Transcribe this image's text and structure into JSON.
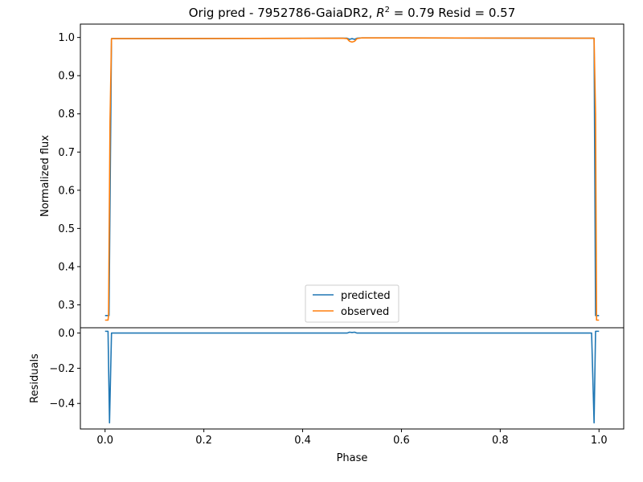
{
  "chart_data": [
    {
      "type": "line",
      "title": {
        "prefix": "Orig pred - 7952786-GaiaDR2, ",
        "r2_symbol": "R",
        "r2_exponent": "2",
        "r2_value": " = 0.79 Resid = 0.57"
      },
      "ylabel": "Normalized flux",
      "xlim": [
        -0.05,
        1.05
      ],
      "ylim": [
        0.24,
        1.035
      ],
      "yticks": [
        0.3,
        0.4,
        0.5,
        0.6,
        0.7,
        0.8,
        0.9,
        1.0
      ],
      "ytick_labels": [
        "0.3",
        "0.4",
        "0.5",
        "0.6",
        "0.7",
        "0.8",
        "0.9",
        "1.0"
      ],
      "legend": {
        "placement": "lower center"
      },
      "series": [
        {
          "name": "predicted",
          "color": "#1f77b4",
          "x": [
            0.0,
            0.007,
            0.008,
            0.013,
            0.05,
            0.48,
            0.49,
            0.495,
            0.5,
            0.505,
            0.51,
            0.52,
            0.95,
            0.985,
            0.99,
            0.993,
            1.0
          ],
          "y": [
            0.272,
            0.272,
            0.272,
            0.997,
            0.997,
            0.998,
            0.998,
            0.995,
            0.997,
            0.995,
            0.998,
            0.999,
            0.998,
            0.998,
            0.998,
            0.272,
            0.272
          ]
        },
        {
          "name": "observed",
          "color": "#ff7f0e",
          "x": [
            0.0,
            0.006,
            0.007,
            0.01,
            0.013,
            0.05,
            0.48,
            0.49,
            0.495,
            0.5,
            0.505,
            0.51,
            0.52,
            0.95,
            0.985,
            0.99,
            0.993,
            0.995,
            1.0
          ],
          "y": [
            0.26,
            0.26,
            0.272,
            0.78,
            0.997,
            0.997,
            0.998,
            0.997,
            0.99,
            0.988,
            0.99,
            0.997,
            0.999,
            0.998,
            0.998,
            0.998,
            0.8,
            0.26,
            0.26
          ]
        }
      ]
    },
    {
      "type": "line",
      "xlabel": "Phase",
      "ylabel": "Residuals",
      "xlim": [
        -0.05,
        1.05
      ],
      "ylim": [
        -0.545,
        0.03
      ],
      "xticks": [
        0.0,
        0.2,
        0.4,
        0.6,
        0.8,
        1.0
      ],
      "xtick_labels": [
        "0.0",
        "0.2",
        "0.4",
        "0.6",
        "0.8",
        "1.0"
      ],
      "yticks": [
        0.0,
        -0.2,
        -0.4
      ],
      "ytick_labels": [
        "0.0",
        "−0.2",
        "−0.4"
      ],
      "series": [
        {
          "color": "#1f77b4",
          "x": [
            0.0,
            0.006,
            0.009,
            0.013,
            0.05,
            0.48,
            0.49,
            0.495,
            0.5,
            0.505,
            0.51,
            0.52,
            0.95,
            0.985,
            0.99,
            0.993,
            0.995,
            1.0
          ],
          "y": [
            0.01,
            0.01,
            -0.51,
            0.0,
            0.0,
            0.0,
            0.0,
            0.005,
            0.003,
            0.005,
            0.0,
            0.0,
            0.0,
            0.0,
            -0.51,
            0.01,
            0.01,
            0.01
          ]
        }
      ]
    }
  ]
}
